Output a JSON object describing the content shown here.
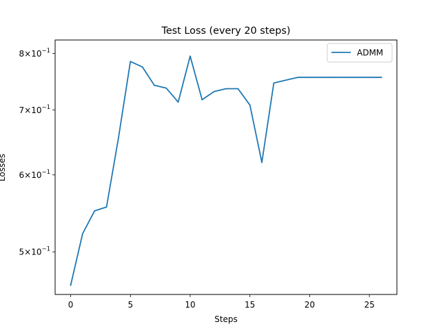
{
  "chart_data": {
    "type": "line",
    "title": "Test Loss (every 20 steps)",
    "xlabel": "Steps",
    "ylabel": "Losses",
    "yscale": "log",
    "xlim": [
      -1.3,
      27.3
    ],
    "ylim": [
      0.452,
      0.826
    ],
    "grid": false,
    "legend": {
      "placement": "top-right"
    },
    "x_ticks": [
      {
        "value": 0,
        "label": "0"
      },
      {
        "value": 5,
        "label": "5"
      },
      {
        "value": 10,
        "label": "10"
      },
      {
        "value": 15,
        "label": "15"
      },
      {
        "value": 20,
        "label": "20"
      },
      {
        "value": 25,
        "label": "25"
      }
    ],
    "y_ticks": [
      {
        "value": 0.5,
        "base": "5",
        "exp": "−1"
      },
      {
        "value": 0.6,
        "base": "6",
        "exp": "−1"
      },
      {
        "value": 0.7,
        "base": "7",
        "exp": "−1"
      },
      {
        "value": 0.8,
        "base": "8",
        "exp": "−1"
      }
    ],
    "series": [
      {
        "name": "ADMM",
        "color": "#1f77b4",
        "x": [
          0,
          1,
          2,
          3,
          4,
          5,
          6,
          7,
          8,
          9,
          10,
          11,
          12,
          13,
          14,
          15,
          16,
          17,
          18,
          19,
          20,
          21,
          22,
          23,
          24,
          25,
          26
        ],
        "values": [
          0.462,
          0.522,
          0.551,
          0.556,
          0.655,
          0.785,
          0.775,
          0.742,
          0.737,
          0.713,
          0.795,
          0.717,
          0.731,
          0.736,
          0.736,
          0.708,
          0.618,
          0.746,
          0.751,
          0.756,
          0.756,
          0.756,
          0.756,
          0.756,
          0.756,
          0.756,
          0.756
        ]
      }
    ]
  }
}
